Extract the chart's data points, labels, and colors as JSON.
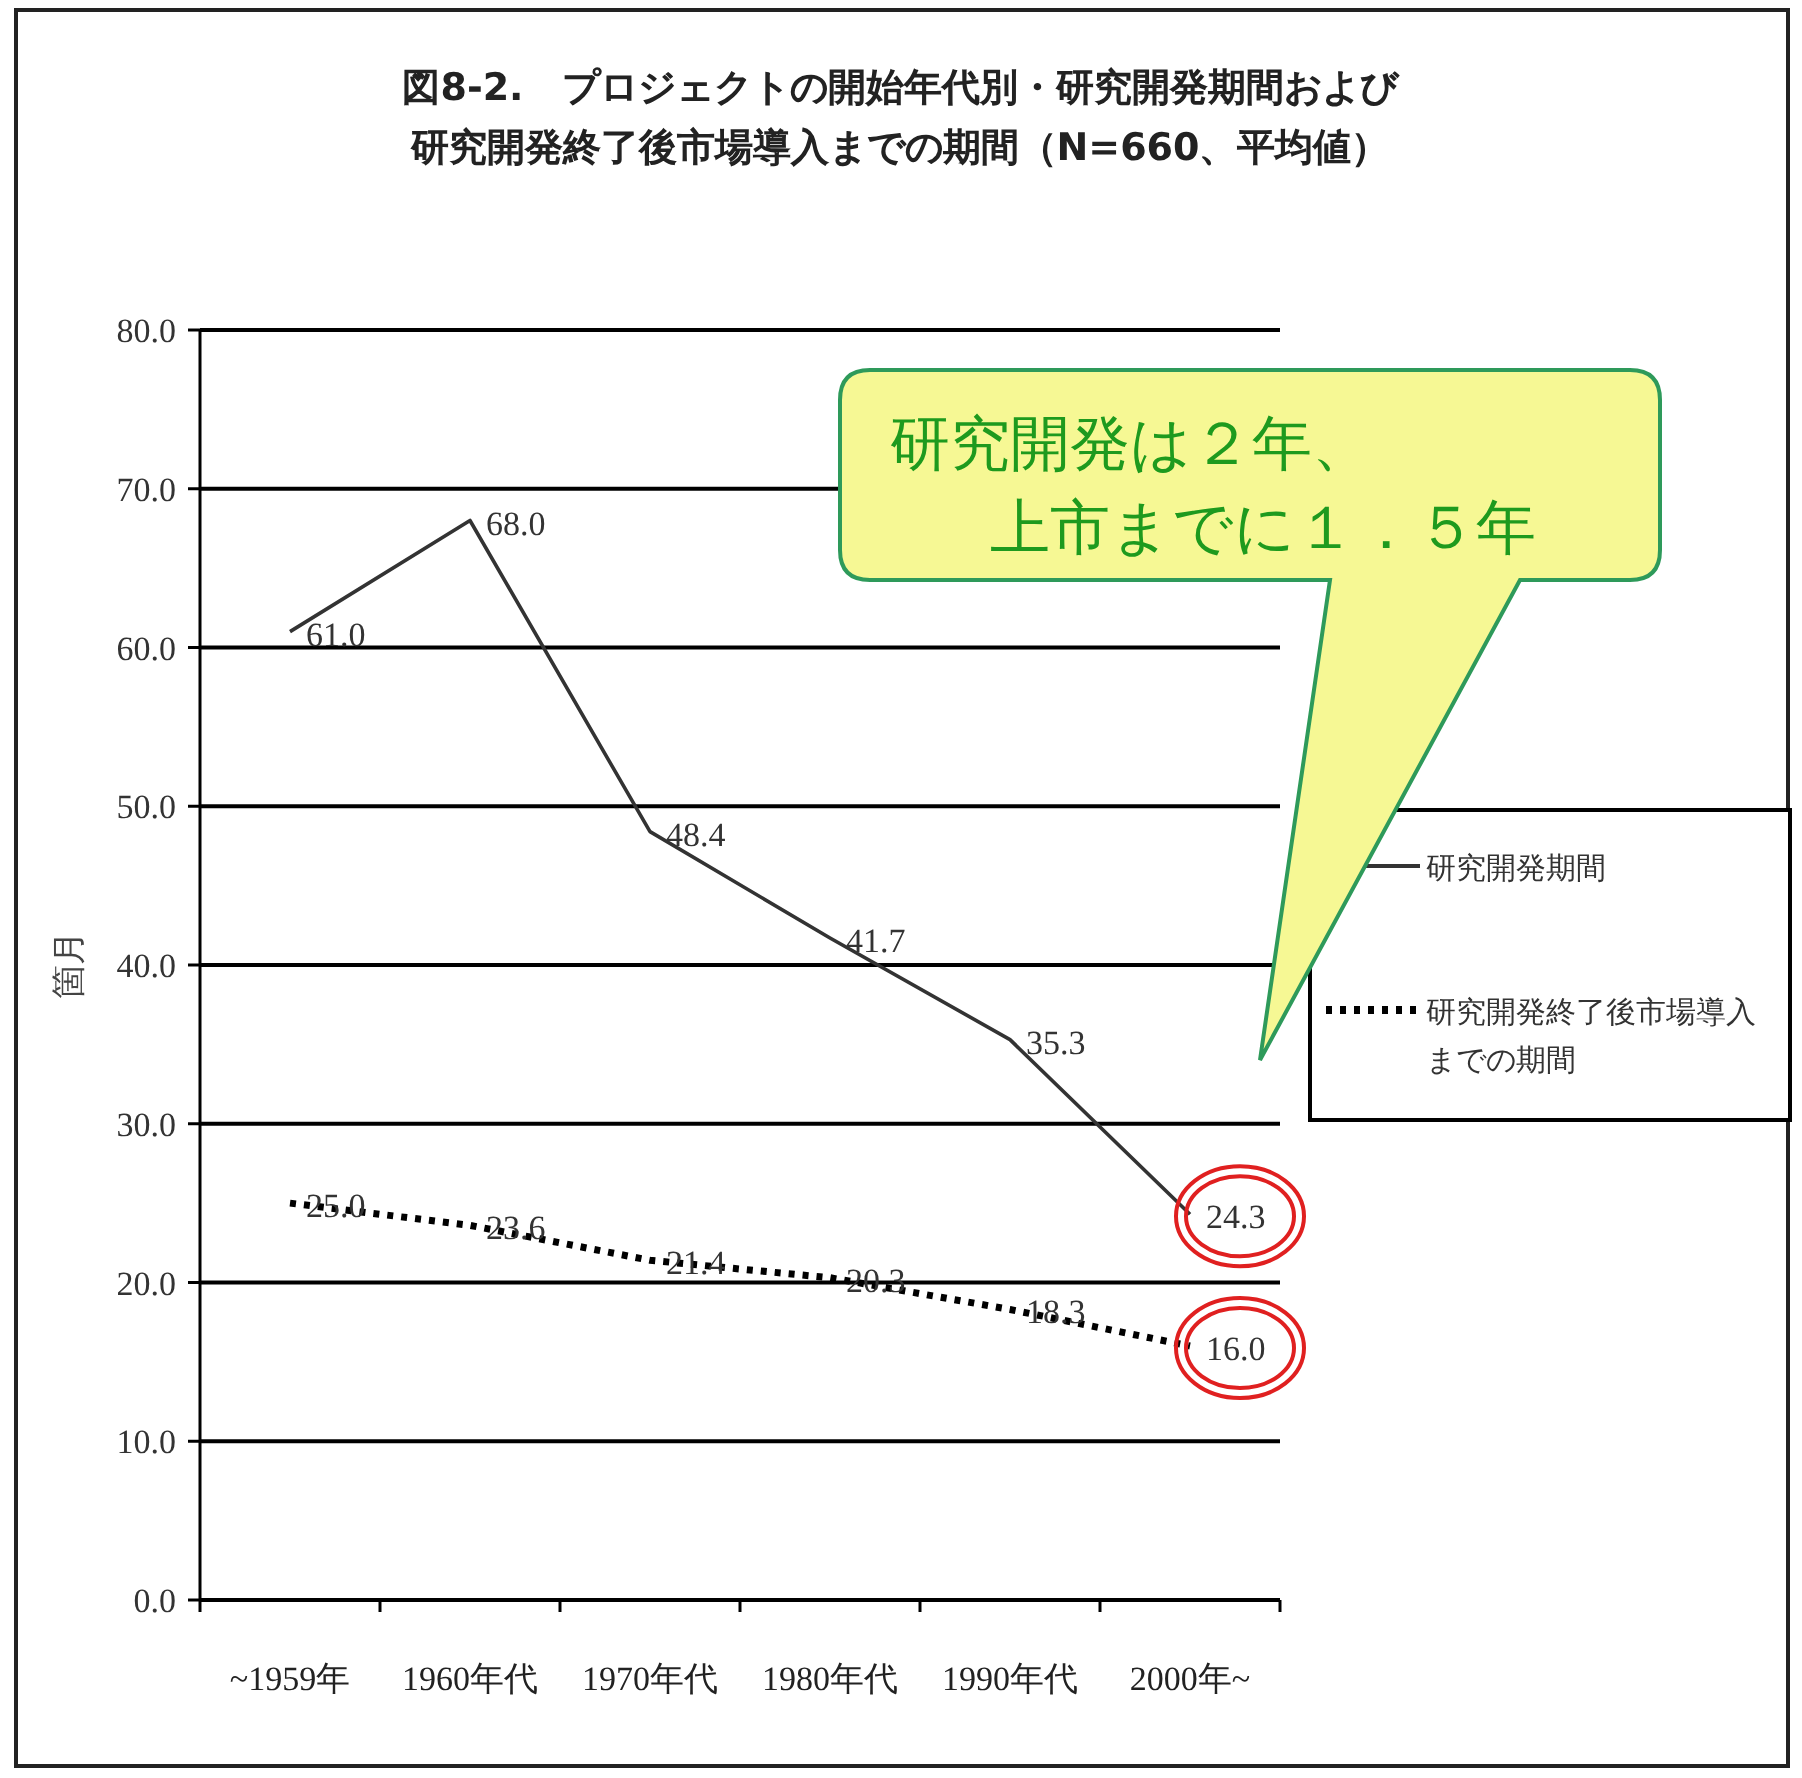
{
  "chart_data": {
    "type": "line",
    "title": "図8-2.　プロジェクトの開始年代別・研究開発期間および",
    "subtitle": "研究開発終了後市場導入までの期間（N=660、平均値）",
    "ylabel": "箇月",
    "categories": [
      "~1959年",
      "1960年代",
      "1970年代",
      "1980年代",
      "1990年代",
      "2000年~"
    ],
    "series": [
      {
        "name": "研究開発期間",
        "color": "#333333",
        "line_style": "solid",
        "values": [
          61.0,
          68.0,
          48.4,
          41.7,
          35.3,
          24.3
        ],
        "value_labels": [
          "61.0",
          "68.0",
          "48.4",
          "41.7",
          "35.3",
          "24.3"
        ]
      },
      {
        "name": "研究開発終了後市場導入までの期間",
        "color": "#000000",
        "line_style": "dotted",
        "values": [
          25.0,
          23.6,
          21.4,
          20.3,
          18.3,
          16.0
        ],
        "value_labels": [
          "25.0",
          "23.6",
          "21.4",
          "20.3",
          "18.3",
          "16.0"
        ]
      }
    ],
    "ylim": [
      0,
      80
    ],
    "yticks": [
      {
        "value": 0,
        "label": "0.0"
      },
      {
        "value": 10,
        "label": "10.0"
      },
      {
        "value": 20,
        "label": "20.0"
      },
      {
        "value": 30,
        "label": "30.0"
      },
      {
        "value": 40,
        "label": "40.0"
      },
      {
        "value": 50,
        "label": "50.0"
      },
      {
        "value": 60,
        "label": "60.0"
      },
      {
        "value": 70,
        "label": "70.0"
      },
      {
        "value": 80,
        "label": "80.0"
      }
    ],
    "grid": "y",
    "legend": "right",
    "marker": "none",
    "annotations": [
      "研究開発は２年、",
      "上市までに１．５年"
    ]
  }
}
